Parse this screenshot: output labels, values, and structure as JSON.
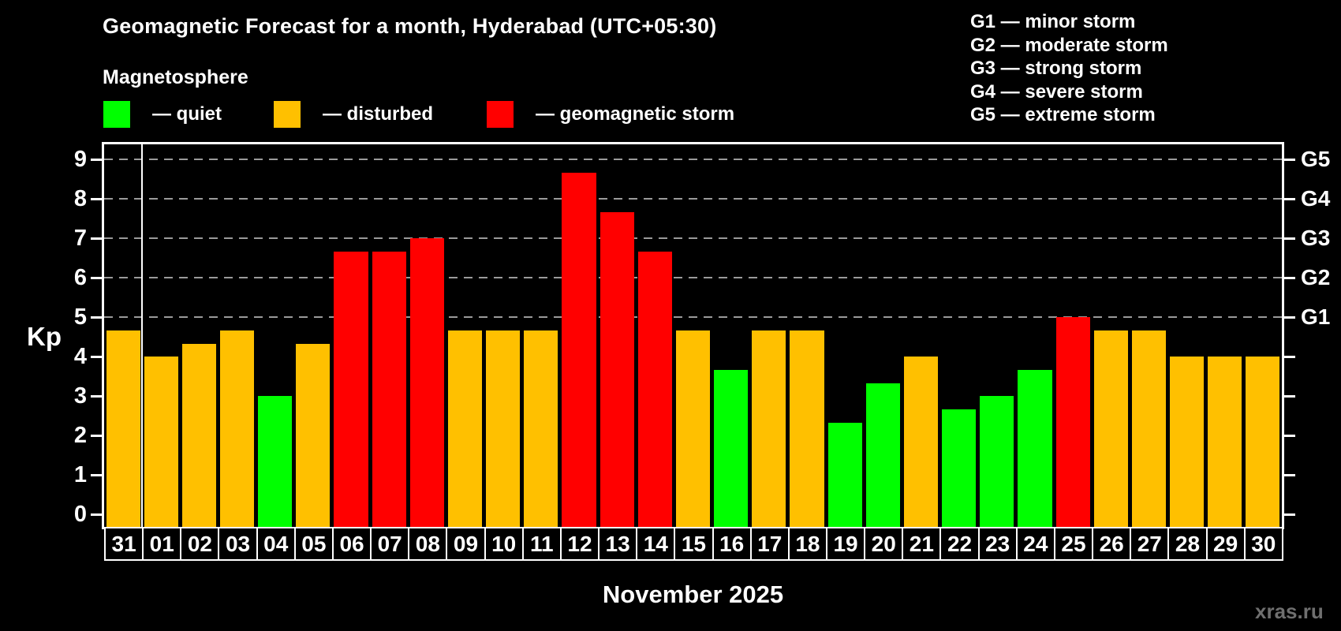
{
  "title": "Geomagnetic Forecast for a month, Hyderabad (UTC+05:30)",
  "subtitle": "Magnetosphere",
  "legend": {
    "quiet": "— quiet",
    "disturbed": "— disturbed",
    "storm": "— geomagnetic storm"
  },
  "g_legend": {
    "items": [
      "G1 — minor storm",
      "G2 — moderate storm",
      "G3 — strong storm",
      "G4 — severe storm",
      "G5 — extreme storm"
    ]
  },
  "axis": {
    "y_label": "Kp",
    "y_ticks": [
      0,
      1,
      2,
      3,
      4,
      5,
      6,
      7,
      8,
      9
    ],
    "right_labels": [
      {
        "kp": 5,
        "label": "G1"
      },
      {
        "kp": 6,
        "label": "G2"
      },
      {
        "kp": 7,
        "label": "G3"
      },
      {
        "kp": 8,
        "label": "G4"
      },
      {
        "kp": 9,
        "label": "G5"
      }
    ],
    "x_label": "November 2025"
  },
  "watermark": "xras.ru",
  "colors": {
    "quiet": "#00ff00",
    "disturbed": "#ffc000",
    "storm": "#ff0000",
    "background": "#000000",
    "grid": "#9a9a9a",
    "axis": "#ffffff"
  },
  "chart_data": {
    "type": "bar",
    "title": "Geomagnetic Forecast for a month, Hyderabad (UTC+05:30)",
    "xlabel": "November 2025",
    "ylabel": "Kp",
    "ylim": [
      0,
      9
    ],
    "grid": "dashed horizontal lines at Kp 5-9 only",
    "gridlines_at": [
      5,
      6,
      7,
      8,
      9
    ],
    "legend_position": "top-left (status colors) and top-right (G-scale)",
    "month_separator_after_index": 0,
    "categories": [
      "31",
      "01",
      "02",
      "03",
      "04",
      "05",
      "06",
      "07",
      "08",
      "09",
      "10",
      "11",
      "12",
      "13",
      "14",
      "15",
      "16",
      "17",
      "18",
      "19",
      "20",
      "21",
      "22",
      "23",
      "24",
      "25",
      "26",
      "27",
      "28",
      "29",
      "30"
    ],
    "values": [
      4.67,
      4,
      4.33,
      4.67,
      3,
      4.33,
      6.67,
      6.67,
      7,
      4.67,
      4.67,
      4.67,
      8.67,
      7.67,
      6.67,
      4.67,
      3.67,
      4.67,
      4.67,
      2.33,
      3.33,
      4,
      2.67,
      3,
      3.67,
      5,
      4.67,
      4.67,
      4,
      4,
      4
    ],
    "statuses": [
      "disturbed",
      "disturbed",
      "disturbed",
      "disturbed",
      "quiet",
      "disturbed",
      "storm",
      "storm",
      "storm",
      "disturbed",
      "disturbed",
      "disturbed",
      "storm",
      "storm",
      "storm",
      "disturbed",
      "quiet",
      "disturbed",
      "disturbed",
      "quiet",
      "quiet",
      "disturbed",
      "quiet",
      "quiet",
      "quiet",
      "storm",
      "disturbed",
      "disturbed",
      "disturbed",
      "disturbed",
      "disturbed"
    ]
  }
}
